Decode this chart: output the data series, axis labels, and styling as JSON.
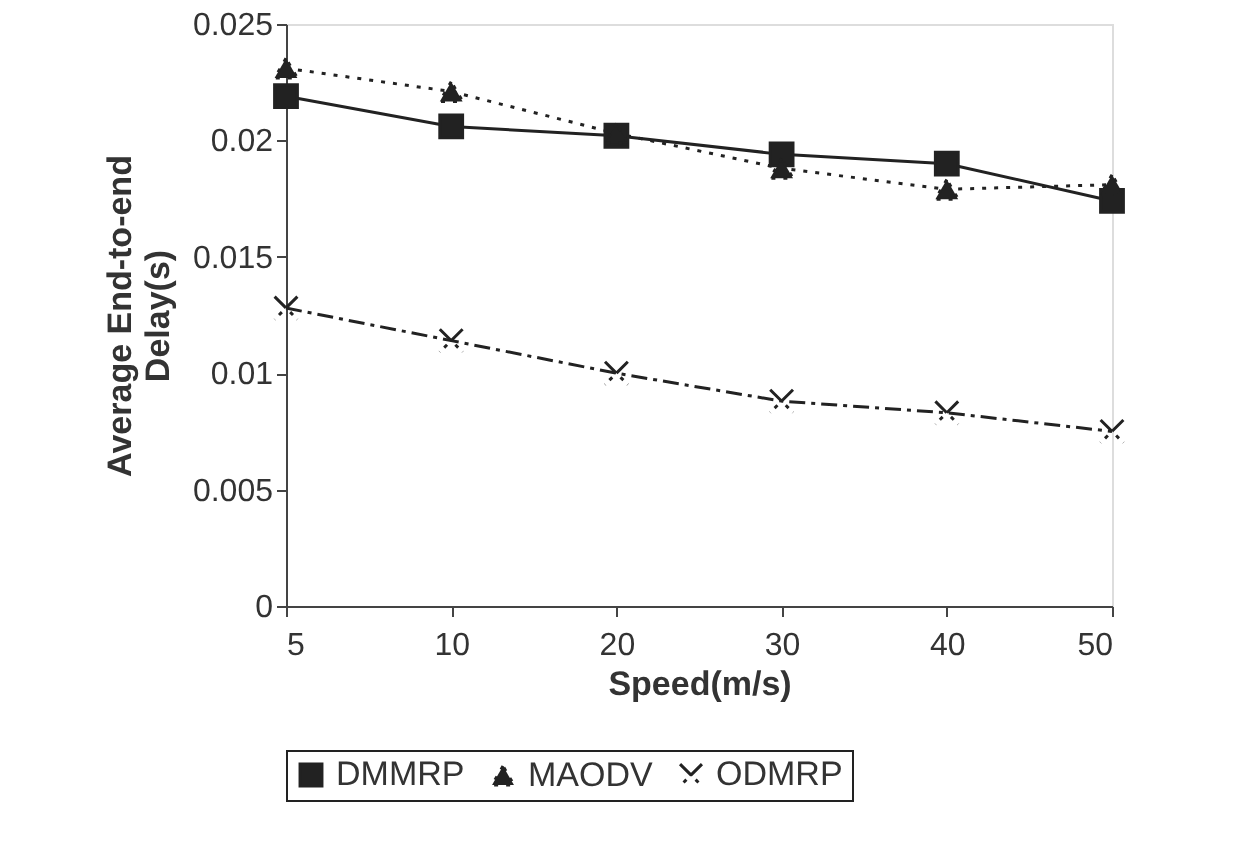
{
  "chart_data": {
    "type": "line",
    "xlabel": "Speed(m/s)",
    "ylabel": "Average End-to-end Delay(s)",
    "categories": [
      "5",
      "10",
      "20",
      "30",
      "40",
      "50"
    ],
    "series": [
      {
        "name": "DMMRP",
        "color": "#222222",
        "marker": "square",
        "line_style": "solid",
        "values": [
          0.0219,
          0.0206,
          0.0202,
          0.0194,
          0.019,
          0.0174
        ]
      },
      {
        "name": "MAODV",
        "color": "#222222",
        "marker": "triangle",
        "line_style": "dotted",
        "values": [
          0.0231,
          0.0221,
          0.0203,
          0.0188,
          0.0179,
          0.0181
        ]
      },
      {
        "name": "ODMRP",
        "color": "#222222",
        "marker": "cross",
        "line_style": "dashed",
        "values": [
          0.0128,
          0.0114,
          0.01,
          0.0088,
          0.0083,
          0.0075
        ]
      }
    ],
    "ylim": [
      0,
      0.025
    ],
    "yticks": [
      0,
      0.005,
      0.01,
      0.015,
      0.02,
      0.025
    ],
    "grid": false,
    "legend": "bottom"
  }
}
